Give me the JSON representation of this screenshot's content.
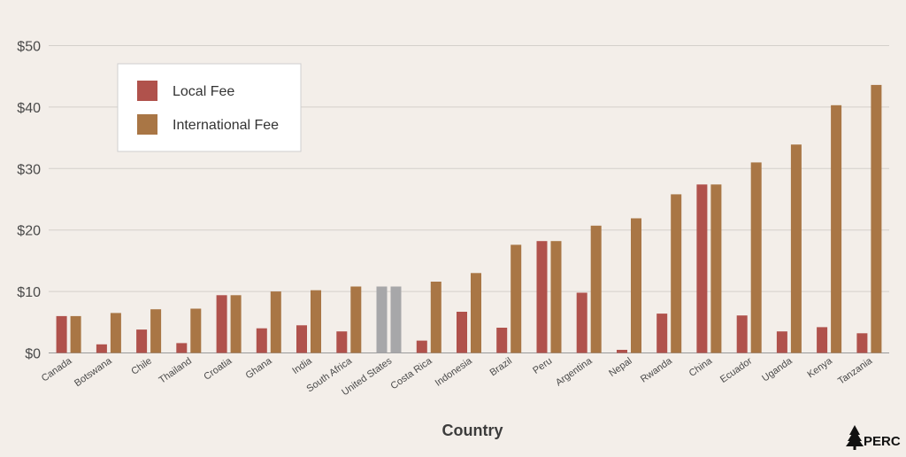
{
  "chart_data": {
    "type": "bar",
    "title": "",
    "xlabel": "Country",
    "ylabel": "",
    "ylim": [
      0,
      50
    ],
    "yticks": [
      0,
      10,
      20,
      30,
      40,
      50
    ],
    "ytick_labels": [
      "$0",
      "$10",
      "$20",
      "$30",
      "$40",
      "$50"
    ],
    "grid": true,
    "legend_position": "top-left",
    "categories": [
      "Canada",
      "Botswana",
      "Chile",
      "Thailand",
      "Croatia",
      "Ghana",
      "India",
      "South Africa",
      "United States",
      "Costa Rica",
      "Indonesia",
      "Brazil",
      "Peru",
      "Argentina",
      "Nepal",
      "Rwanda",
      "China",
      "Ecuador",
      "Uganda",
      "Kenya",
      "Tanzania"
    ],
    "series": [
      {
        "name": "Local Fee",
        "color": "#b0524c",
        "values": [
          6.0,
          1.4,
          3.8,
          1.6,
          9.4,
          4.0,
          4.5,
          3.5,
          10.8,
          2.0,
          6.7,
          4.1,
          18.2,
          9.8,
          0.5,
          6.4,
          27.4,
          6.1,
          3.5,
          4.2,
          3.2
        ]
      },
      {
        "name": "International Fee",
        "color": "#a97645",
        "values": [
          6.0,
          6.5,
          7.1,
          7.2,
          9.4,
          10.0,
          10.2,
          10.8,
          10.8,
          11.6,
          13.0,
          17.6,
          18.2,
          20.7,
          21.9,
          25.8,
          27.4,
          31.0,
          33.9,
          40.3,
          43.6
        ]
      }
    ],
    "highlight": {
      "category": "United States",
      "color": "#a7a7a9"
    },
    "logo": {
      "text": "PERC",
      "icon": "pine-tree-icon"
    }
  }
}
